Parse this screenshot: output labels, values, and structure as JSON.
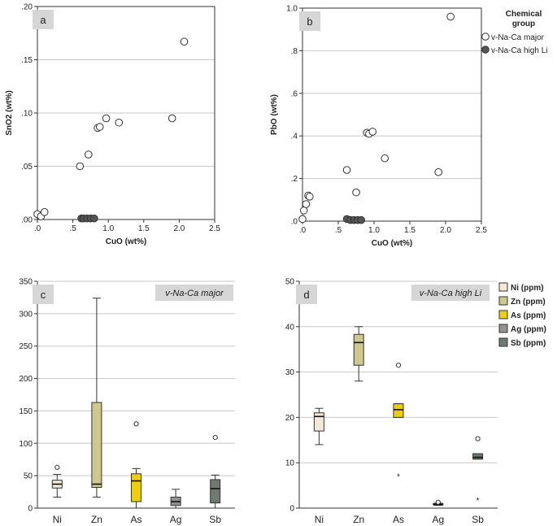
{
  "chart_data": [
    {
      "panel": "a",
      "type": "scatter",
      "xlabel": "CuO (wt%)",
      "ylabel": "SnO2 (wt%)",
      "xlim": [
        0,
        2.5
      ],
      "ylim": [
        0,
        0.2
      ],
      "x_ticks": [
        ".0",
        ".5",
        "1.0",
        "1.5",
        "2.0",
        "2.5"
      ],
      "y_ticks": [
        ".00",
        ".05",
        ".10",
        ".15",
        ".20"
      ],
      "series": [
        {
          "name": "v-Na-Ca major",
          "marker": "open",
          "points": [
            [
              0.0,
              0.005
            ],
            [
              0.05,
              0.003
            ],
            [
              0.1,
              0.007
            ],
            [
              0.6,
              0.05
            ],
            [
              0.72,
              0.061
            ],
            [
              0.85,
              0.086
            ],
            [
              0.88,
              0.087
            ],
            [
              0.97,
              0.095
            ],
            [
              1.15,
              0.091
            ],
            [
              1.9,
              0.095
            ],
            [
              2.07,
              0.167
            ]
          ]
        },
        {
          "name": "v-Na-Ca high Li",
          "marker": "filled",
          "points": [
            [
              0.62,
              0.001
            ],
            [
              0.65,
              0.001
            ],
            [
              0.7,
              0.001
            ],
            [
              0.75,
              0.001
            ],
            [
              0.8,
              0.001
            ]
          ]
        }
      ]
    },
    {
      "panel": "b",
      "type": "scatter",
      "xlabel": "CuO (wt%)",
      "ylabel": "PbO (wt%)",
      "xlim": [
        0,
        2.5
      ],
      "ylim": [
        0,
        1.0
      ],
      "x_ticks": [
        ".0",
        ".5",
        "1.0",
        "1.5",
        "2.0",
        "2.5"
      ],
      "y_ticks": [
        ".0",
        ".2",
        ".4",
        ".6",
        ".8",
        "1.0"
      ],
      "series": [
        {
          "name": "v-Na-Ca major",
          "marker": "open",
          "points": [
            [
              0.0,
              0.01
            ],
            [
              0.02,
              0.05
            ],
            [
              0.05,
              0.08
            ],
            [
              0.08,
              0.12
            ],
            [
              0.1,
              0.115
            ],
            [
              0.62,
              0.24
            ],
            [
              0.75,
              0.135
            ],
            [
              0.9,
              0.415
            ],
            [
              0.93,
              0.41
            ],
            [
              0.98,
              0.42
            ],
            [
              1.15,
              0.295
            ],
            [
              1.9,
              0.23
            ],
            [
              2.07,
              0.96
            ]
          ]
        },
        {
          "name": "v-Na-Ca high Li",
          "marker": "filled",
          "points": [
            [
              0.62,
              0.01
            ],
            [
              0.67,
              0.005
            ],
            [
              0.72,
              0.005
            ],
            [
              0.77,
              0.005
            ],
            [
              0.82,
              0.005
            ]
          ]
        }
      ],
      "legend": {
        "title_line1": "Chemical",
        "title_line2": "group",
        "placement": "right"
      }
    },
    {
      "panel": "c",
      "type": "box",
      "tag": "v-Na-Ca major",
      "categories": [
        "Ni",
        "Zn",
        "As",
        "Ag",
        "Sb"
      ],
      "ylim": [
        0,
        350
      ],
      "y_ticks": [
        "0",
        "50",
        "100",
        "150",
        "200",
        "250",
        "300",
        "350"
      ],
      "boxes": [
        {
          "name": "Ni",
          "color": "#f3ead6",
          "whisker_low": 17,
          "q1": 31,
          "median": 37,
          "q3": 43,
          "whisker_high": 52,
          "outliers": [
            63
          ],
          "extremes": []
        },
        {
          "name": "Zn",
          "color": "#cfc88e",
          "whisker_low": 17,
          "q1": 32,
          "median": 37,
          "q3": 163,
          "whisker_high": 324,
          "outliers": [],
          "extremes": []
        },
        {
          "name": "As",
          "color": "#eccf12",
          "whisker_low": 0,
          "q1": 10,
          "median": 42,
          "q3": 53,
          "whisker_high": 61,
          "outliers": [
            130
          ],
          "extremes": []
        },
        {
          "name": "Ag",
          "color": "#979292",
          "whisker_low": 0,
          "q1": 4,
          "median": 10,
          "q3": 17,
          "whisker_high": 29,
          "outliers": [],
          "extremes": []
        },
        {
          "name": "Sb",
          "color": "#6e7a70",
          "whisker_low": 0,
          "q1": 8,
          "median": 30,
          "q3": 44,
          "whisker_high": 51,
          "outliers": [
            109
          ],
          "extremes": []
        }
      ]
    },
    {
      "panel": "d",
      "type": "box",
      "tag": "v-Na-Ca high Li",
      "categories": [
        "Ni",
        "Zn",
        "As",
        "Ag",
        "Sb"
      ],
      "ylim": [
        0,
        50
      ],
      "y_ticks": [
        "0",
        "10",
        "20",
        "30",
        "40",
        "50"
      ],
      "boxes": [
        {
          "name": "Ni",
          "color": "#f3ead6",
          "whisker_low": 14,
          "q1": 17,
          "median": 20.2,
          "q3": 21,
          "whisker_high": 22,
          "outliers": [],
          "extremes": []
        },
        {
          "name": "Zn",
          "color": "#cfc88e",
          "whisker_low": 28,
          "q1": 31.5,
          "median": 36.5,
          "q3": 38.3,
          "whisker_high": 40,
          "outliers": [],
          "extremes": []
        },
        {
          "name": "As",
          "color": "#eccf12",
          "whisker_low": 20,
          "q1": 20,
          "median": 21.7,
          "q3": 23,
          "whisker_high": 23,
          "outliers": [
            31.5
          ],
          "extremes": [
            7.3
          ]
        },
        {
          "name": "Ag",
          "color": "#979292",
          "whisker_low": 0.6,
          "q1": 0.7,
          "median": 0.8,
          "q3": 1.0,
          "whisker_high": 1.1,
          "outliers": [
            1.3
          ],
          "extremes": []
        },
        {
          "name": "Sb",
          "color": "#6e7a70",
          "whisker_low": 10.8,
          "q1": 10.8,
          "median": 11.2,
          "q3": 12,
          "whisker_high": 12,
          "outliers": [
            15.3
          ],
          "extremes": [
            2
          ]
        }
      ],
      "legend": [
        {
          "label": "Ni (ppm)",
          "color": "#f3ead6"
        },
        {
          "label": "Zn (ppm)",
          "color": "#cfc88e"
        },
        {
          "label": "As (ppm)",
          "color": "#eccf12"
        },
        {
          "label": "Ag (ppm)",
          "color": "#979292"
        },
        {
          "label": "Sb (ppm)",
          "color": "#6e7a70"
        }
      ]
    }
  ],
  "colors": {
    "grid": "#c8c8c8",
    "axis": "#333333",
    "label_box": "#d6d6d6",
    "filled_marker": "#555555"
  }
}
